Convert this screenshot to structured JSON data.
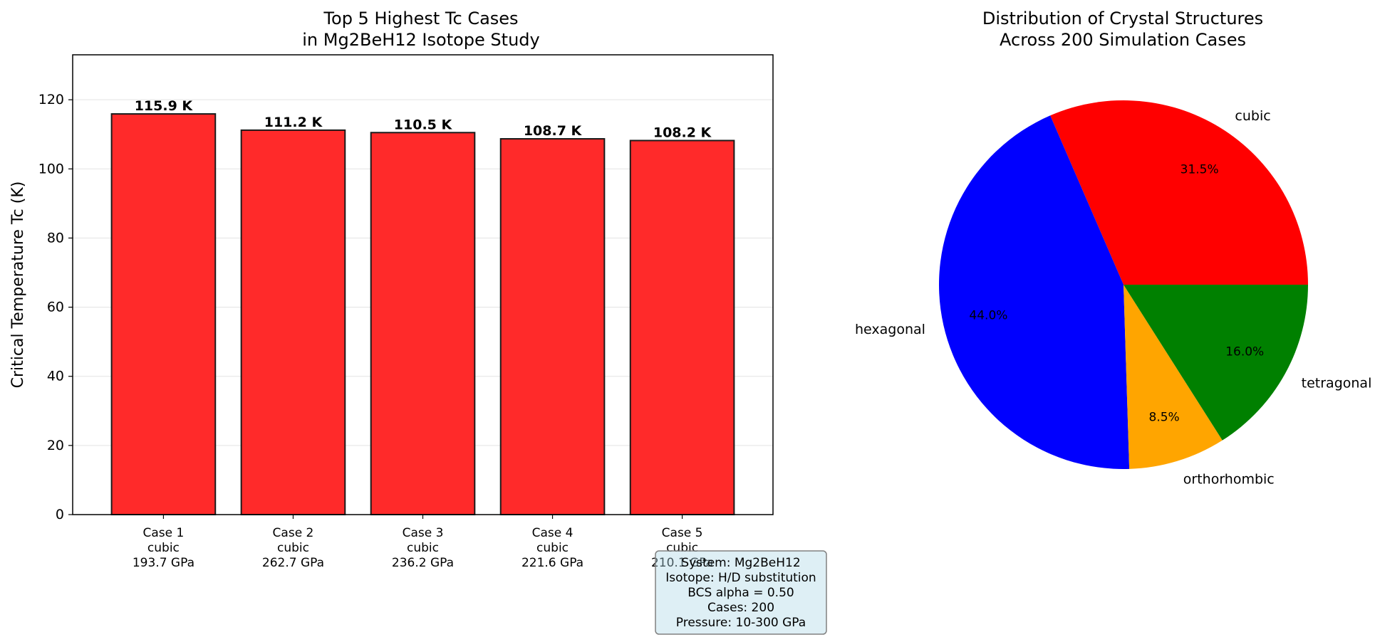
{
  "chart_data": [
    {
      "type": "bar",
      "title": [
        "Top 5 Highest Tc Cases",
        "in Mg2BeH12 Isotope Study"
      ],
      "ylabel": "Critical Temperature Tc (K)",
      "xlabel": "",
      "ylim": [
        0,
        133
      ],
      "yticks": [
        0,
        20,
        40,
        60,
        80,
        100,
        120
      ],
      "grid": "y",
      "bar_color": "#ff2a2a",
      "categories": [
        [
          "Case 1",
          "cubic",
          "193.7 GPa"
        ],
        [
          "Case 2",
          "cubic",
          "262.7 GPa"
        ],
        [
          "Case 3",
          "cubic",
          "236.2 GPa"
        ],
        [
          "Case 4",
          "cubic",
          "221.6 GPa"
        ],
        [
          "Case 5",
          "cubic",
          "210.1 GPa"
        ]
      ],
      "values": [
        115.9,
        111.2,
        110.5,
        108.7,
        108.2
      ],
      "data_labels": [
        "115.9 K",
        "111.2 K",
        "110.5 K",
        "108.7 K",
        "108.2 K"
      ],
      "annotation": [
        "System: Mg2BeH12",
        "Isotope: H/D substitution",
        "BCS alpha = 0.50",
        "Cases: 200",
        "Pressure: 10-300 GPa"
      ]
    },
    {
      "type": "pie",
      "title": [
        "Distribution of Crystal Structures",
        "Across 200 Simulation Cases"
      ],
      "slices": [
        {
          "label": "cubic",
          "value": 31.5,
          "pct": "31.5%",
          "color": "#ff0000"
        },
        {
          "label": "hexagonal",
          "value": 44.0,
          "pct": "44.0%",
          "color": "#0000ff"
        },
        {
          "label": "orthorhombic",
          "value": 8.5,
          "pct": "8.5%",
          "color": "#ffa500"
        },
        {
          "label": "tetragonal",
          "value": 16.0,
          "pct": "16.0%",
          "color": "#008000"
        }
      ]
    }
  ]
}
